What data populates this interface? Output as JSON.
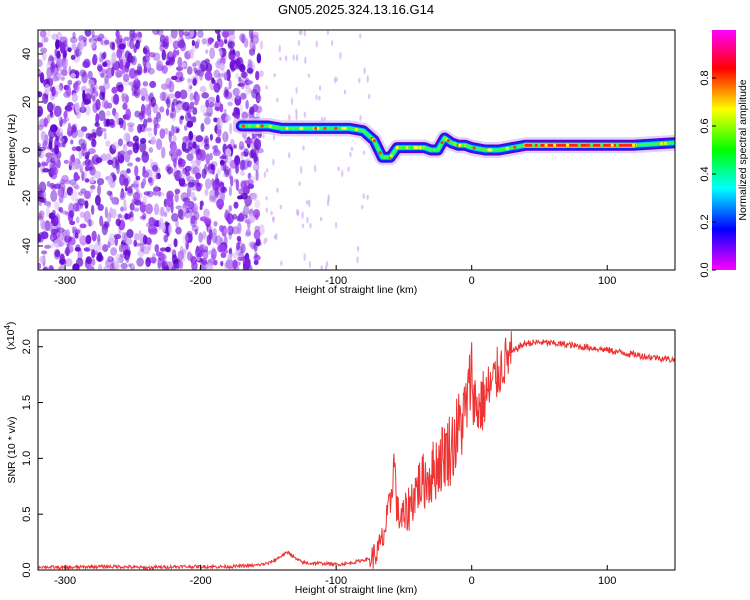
{
  "page_title": "GN05.2025.324.13.16.G14",
  "chart_data": [
    {
      "type": "heatmap",
      "title": "GN05.2025.324.13.16.G14",
      "xlabel": "Height of straight line (km)",
      "ylabel": "Frequency (Hz)",
      "xlim": [
        -320,
        150
      ],
      "ylim": [
        -50,
        50
      ],
      "x_ticks": [
        -300,
        -200,
        -100,
        0,
        100
      ],
      "y_ticks": [
        -40,
        -20,
        0,
        20,
        40
      ],
      "grid": false,
      "noise_region": {
        "x_range": [
          -320,
          -155
        ],
        "y_range": [
          -50,
          50
        ],
        "color": "#8a2be2"
      },
      "ridge": {
        "x": [
          -170,
          -160,
          -150,
          -140,
          -130,
          -120,
          -110,
          -100,
          -90,
          -80,
          -72,
          -66,
          -60,
          -55,
          -50,
          -45,
          -40,
          -35,
          -30,
          -25,
          -20,
          -15,
          -10,
          -5,
          0,
          10,
          20,
          40,
          60,
          80,
          100,
          120,
          150
        ],
        "freq": [
          10,
          10,
          10,
          9,
          9,
          9,
          9,
          9,
          9,
          8,
          4,
          -3,
          -3,
          1,
          1,
          1,
          1,
          1,
          0,
          0,
          5,
          3,
          2,
          2,
          1,
          0,
          0,
          2,
          2,
          2,
          2,
          2,
          3
        ]
      },
      "colorbar": {
        "label": "Normalized spectral amplitude",
        "range": [
          0,
          1
        ],
        "ticks": [
          0.0,
          0.2,
          0.4,
          0.6,
          0.8
        ],
        "tick_labels": [
          "0.0",
          "0.2",
          "0.4",
          "0.6",
          "0.8"
        ],
        "colors": [
          "#ff00ff",
          "#ff0000",
          "#ffff00",
          "#00ff00",
          "#00ffff",
          "#0000ff",
          "#ff00ff"
        ]
      }
    },
    {
      "type": "line",
      "xlabel": "Height of straight line (km)",
      "ylabel": "SNR (10 * v/v)",
      "scale_label": "(x10",
      "scale_exponent": "4",
      "scale_close": ")",
      "xlim": [
        -320,
        150
      ],
      "ylim": [
        0,
        2.15
      ],
      "x_ticks": [
        -300,
        -200,
        -100,
        0,
        100
      ],
      "y_ticks": [
        0.0,
        0.5,
        1.0,
        1.5,
        2.0
      ],
      "y_tick_labels": [
        "0.0",
        "0.5",
        "1.0",
        "1.5",
        "2.0"
      ],
      "grid": false,
      "series": [
        {
          "color": "#ee3333",
          "x": [
            -320,
            -300,
            -280,
            -260,
            -240,
            -220,
            -200,
            -180,
            -160,
            -150,
            -145,
            -140,
            -135,
            -130,
            -125,
            -120,
            -110,
            -100,
            -90,
            -80,
            -75,
            -70,
            -65,
            -60,
            -57,
            -55,
            -50,
            -45,
            -40,
            -35,
            -30,
            -25,
            -20,
            -15,
            -10,
            -5,
            -2,
            0,
            2,
            5,
            10,
            15,
            20,
            25,
            30,
            35,
            40,
            50,
            60,
            70,
            80,
            90,
            100,
            110,
            120,
            130,
            140,
            150
          ],
          "y": [
            0.03,
            0.02,
            0.03,
            0.03,
            0.02,
            0.03,
            0.03,
            0.03,
            0.04,
            0.06,
            0.09,
            0.13,
            0.16,
            0.1,
            0.07,
            0.06,
            0.06,
            0.05,
            0.06,
            0.09,
            0.1,
            0.15,
            0.3,
            0.6,
            1.0,
            0.5,
            0.45,
            0.6,
            0.75,
            0.8,
            0.85,
            0.95,
            1.05,
            1.1,
            1.25,
            1.4,
            1.6,
            1.8,
            1.5,
            1.45,
            1.55,
            1.65,
            1.78,
            1.88,
            1.95,
            2.0,
            2.03,
            2.04,
            2.03,
            2.02,
            2.0,
            1.99,
            1.97,
            1.95,
            1.93,
            1.91,
            1.9,
            1.88
          ]
        }
      ]
    }
  ]
}
